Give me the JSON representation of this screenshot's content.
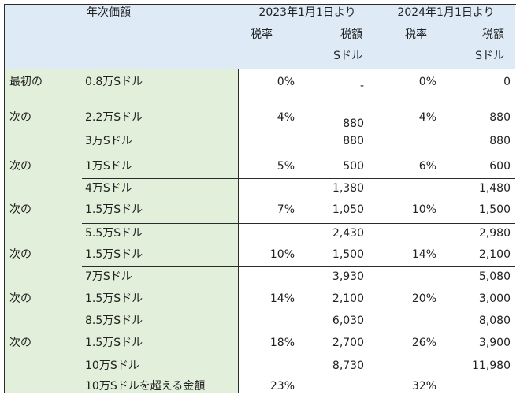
{
  "header": {
    "title": "年次価額",
    "col_2023": "2023年1月1日より",
    "col_2024": "2024年1月1日より",
    "rate": "税率",
    "amount": "税額",
    "unit": "Sドル"
  },
  "rows": [
    {
      "label": "最初の",
      "range": "0.8万Sドル",
      "rate23": "0%",
      "tax23": "-",
      "rate24": "0%",
      "tax24": "0"
    },
    {
      "label": "次の",
      "range": "2.2万Sドル",
      "rate23": "4%",
      "tax23": "880",
      "rate24": "4%",
      "tax24": "880"
    },
    {
      "label": "",
      "range": "3万Sドル",
      "rate23": "",
      "tax23": "880",
      "rate24": "",
      "tax24": "880"
    },
    {
      "label": "次の",
      "range": "1万Sドル",
      "rate23": "5%",
      "tax23": "500",
      "rate24": "6%",
      "tax24": "600"
    },
    {
      "label": "",
      "range": "4万Sドル",
      "rate23": "",
      "tax23": "1,380",
      "rate24": "",
      "tax24": "1,480"
    },
    {
      "label": "次の",
      "range": "1.5万Sドル",
      "rate23": "7%",
      "tax23": "1,050",
      "rate24": "10%",
      "tax24": "1,500"
    },
    {
      "label": "",
      "range": "5.5万Sドル",
      "rate23": "",
      "tax23": "2,430",
      "rate24": "",
      "tax24": "2,980"
    },
    {
      "label": "次の",
      "range": "1.5万Sドル",
      "rate23": "10%",
      "tax23": "1,500",
      "rate24": "14%",
      "tax24": "2,100"
    },
    {
      "label": "",
      "range": "7万Sドル",
      "rate23": "",
      "tax23": "3,930",
      "rate24": "",
      "tax24": "5,080"
    },
    {
      "label": "次の",
      "range": "1.5万Sドル",
      "rate23": "14%",
      "tax23": "2,100",
      "rate24": "20%",
      "tax24": "3,000"
    },
    {
      "label": "",
      "range": "8.5万Sドル",
      "rate23": "",
      "tax23": "6,030",
      "rate24": "",
      "tax24": "8,080"
    },
    {
      "label": "次の",
      "range": "1.5万Sドル",
      "rate23": "18%",
      "tax23": "2,700",
      "rate24": "26%",
      "tax24": "3,900"
    },
    {
      "label": "",
      "range": "10万Sドル",
      "rate23": "",
      "tax23": "8,730",
      "rate24": "",
      "tax24": "11,980"
    },
    {
      "label": "",
      "range": "10万Sドルを超える金額",
      "rate23": "23%",
      "tax23": "",
      "rate24": "32%",
      "tax24": ""
    }
  ],
  "colors": {
    "left_bg": "#e2efda",
    "header_bg": "#deebf7",
    "border": "#2b2b2b"
  }
}
